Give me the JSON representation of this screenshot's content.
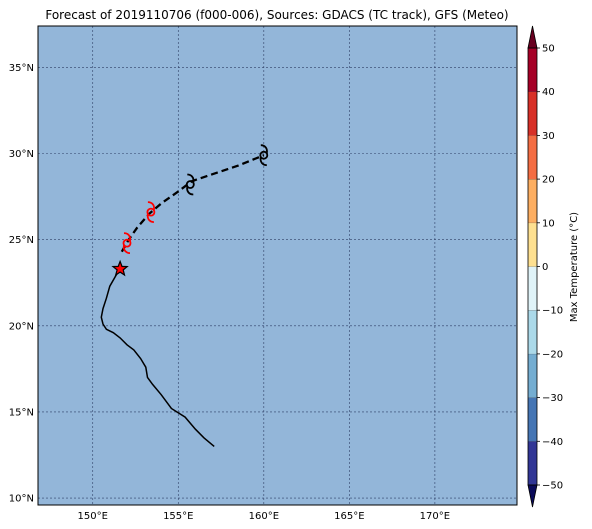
{
  "title": "Forecast of 2019110706 (f000-006), Sources: GDACS (TC track), GFS (Meteo)",
  "map": {
    "lon_range": [
      146.8,
      174.8
    ],
    "lat_range": [
      9.6,
      37.4
    ],
    "ocean_color": "#93b6d9",
    "grid": true,
    "lat_ticks": [
      {
        "value": 35,
        "label": "35°N"
      },
      {
        "value": 30,
        "label": "30°N"
      },
      {
        "value": 25,
        "label": "25°N"
      },
      {
        "value": 20,
        "label": "20°N"
      },
      {
        "value": 15,
        "label": "15°N"
      },
      {
        "value": 10,
        "label": "10°N"
      }
    ],
    "lon_ticks": [
      {
        "value": 150,
        "label": "150°E"
      },
      {
        "value": 155,
        "label": "155°E"
      },
      {
        "value": 160,
        "label": "160°E"
      },
      {
        "value": 165,
        "label": "165°E"
      },
      {
        "value": 170,
        "label": "170°E"
      }
    ]
  },
  "track": {
    "past_track": [
      [
        157.1,
        13.0
      ],
      [
        156.5,
        13.5
      ],
      [
        156.0,
        14.0
      ],
      [
        155.4,
        14.7
      ],
      [
        154.6,
        15.2
      ],
      [
        154.0,
        16.0
      ],
      [
        153.5,
        16.6
      ],
      [
        153.2,
        17.0
      ],
      [
        153.1,
        17.6
      ],
      [
        152.8,
        18.1
      ],
      [
        152.4,
        18.6
      ],
      [
        152.0,
        18.9
      ],
      [
        151.6,
        19.3
      ],
      [
        151.2,
        19.6
      ],
      [
        150.8,
        19.8
      ],
      [
        150.6,
        20.1
      ],
      [
        150.5,
        20.5
      ],
      [
        150.6,
        21.0
      ],
      [
        150.8,
        21.6
      ],
      [
        151.0,
        22.3
      ],
      [
        151.4,
        23.0
      ],
      [
        151.6,
        23.3
      ],
      [
        151.6,
        23.7
      ]
    ],
    "forecast_track": [
      [
        151.7,
        24.3
      ],
      [
        152.1,
        25.0
      ],
      [
        152.6,
        25.7
      ],
      [
        153.3,
        26.5
      ],
      [
        154.0,
        27.1
      ],
      [
        155.0,
        27.8
      ],
      [
        155.8,
        28.4
      ],
      [
        157.0,
        28.8
      ],
      [
        158.5,
        29.3
      ],
      [
        160.0,
        29.9
      ]
    ],
    "current_position": {
      "lon": 151.6,
      "lat": 23.3,
      "symbol": "star-icon",
      "color": "#ff0000"
    },
    "storm_symbols": [
      {
        "lon": 152.0,
        "lat": 24.8,
        "color": "#ff0000"
      },
      {
        "lon": 153.4,
        "lat": 26.6,
        "color": "#ff0000"
      },
      {
        "lon": 155.7,
        "lat": 28.2,
        "color": "#000000"
      },
      {
        "lon": 160.0,
        "lat": 29.9,
        "color": "#000000"
      }
    ]
  },
  "colorbar": {
    "label": "Max Temperature (°C)",
    "ticks": [
      {
        "value": 50,
        "label": "50"
      },
      {
        "value": 40,
        "label": "40"
      },
      {
        "value": 30,
        "label": "30"
      },
      {
        "value": 20,
        "label": "20"
      },
      {
        "value": 10,
        "label": "10"
      },
      {
        "value": 0,
        "label": "0"
      },
      {
        "value": -10,
        "label": "−10"
      },
      {
        "value": -20,
        "label": "−20"
      },
      {
        "value": -30,
        "label": "−30"
      },
      {
        "value": -40,
        "label": "−40"
      },
      {
        "value": -50,
        "label": "−50"
      }
    ],
    "range": [
      -50,
      50
    ],
    "colors": [
      "#313695",
      "#4575b4",
      "#74add1",
      "#abd9e9",
      "#e0f3f8",
      "#fee090",
      "#fdae61",
      "#f46d43",
      "#d73027",
      "#a50026"
    ],
    "extend_colors": {
      "max": "#67001f",
      "min": "#0b0b5a"
    }
  }
}
